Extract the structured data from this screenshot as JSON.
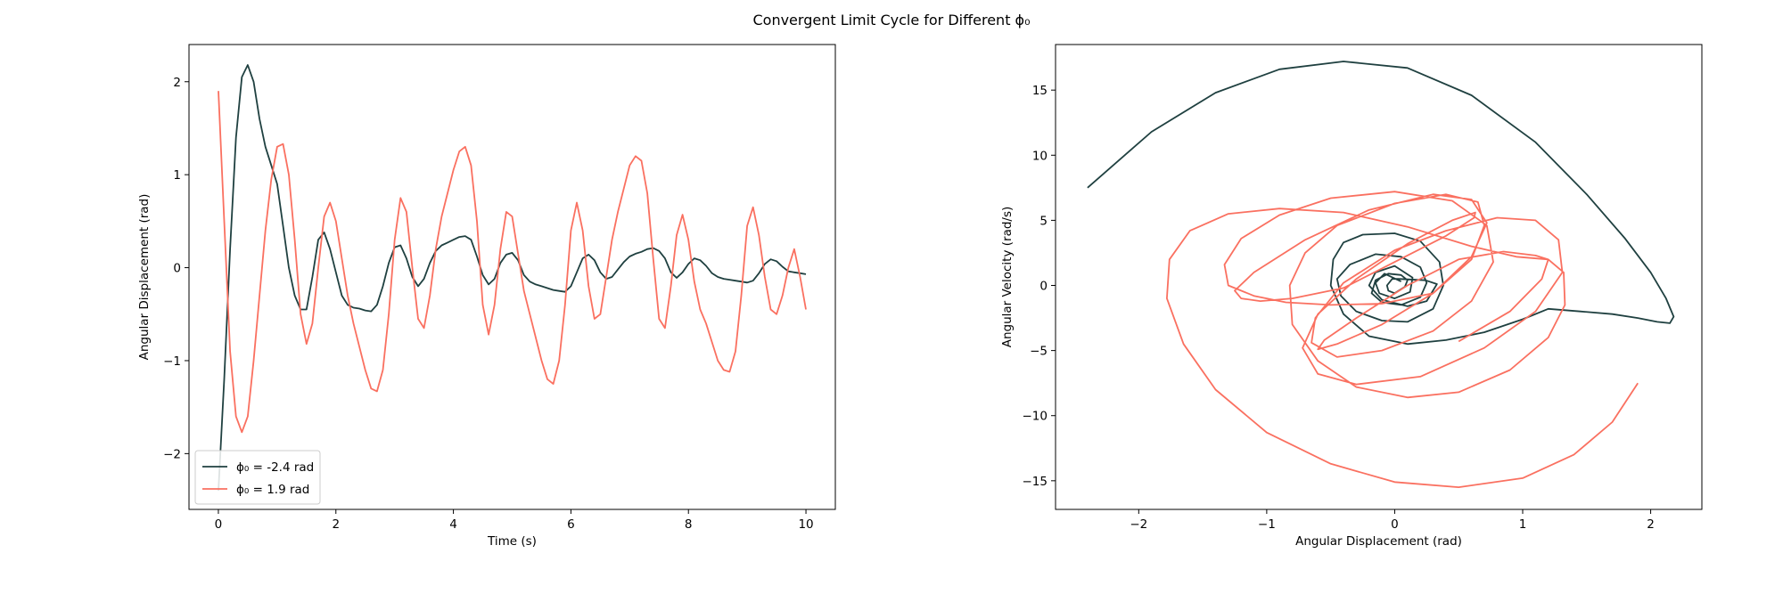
{
  "figure": {
    "title": "Convergent Limit Cycle for Different ϕ₀",
    "background": "#ffffff"
  },
  "chart_data": [
    {
      "type": "line",
      "xlabel": "Time (s)",
      "ylabel": "Angular Displacement (rad)",
      "xlim": [
        -0.5,
        10.5
      ],
      "ylim": [
        -2.6,
        2.4
      ],
      "xticks": [
        0,
        2,
        4,
        6,
        8,
        10
      ],
      "yticks": [
        -2,
        -1,
        0,
        1,
        2
      ],
      "grid": false,
      "legend": "lower-left",
      "series": [
        {
          "name": "ϕ₀ = -2.4 rad",
          "color": "#1f4040",
          "x": [
            0,
            0.1,
            0.2,
            0.3,
            0.4,
            0.5,
            0.6,
            0.7,
            0.8,
            0.9,
            1.0,
            1.1,
            1.2,
            1.3,
            1.4,
            1.5,
            1.6,
            1.7,
            1.8,
            1.9,
            2.0,
            2.1,
            2.2,
            2.3,
            2.4,
            2.5,
            2.6,
            2.7,
            2.8,
            2.9,
            3.0,
            3.1,
            3.2,
            3.3,
            3.4,
            3.5,
            3.6,
            3.7,
            3.8,
            3.9,
            4.0,
            4.1,
            4.2,
            4.3,
            4.4,
            4.5,
            4.6,
            4.7,
            4.8,
            4.9,
            5.0,
            5.1,
            5.2,
            5.3,
            5.4,
            5.5,
            5.6,
            5.7,
            5.8,
            5.9,
            6.0,
            6.1,
            6.2,
            6.3,
            6.4,
            6.5,
            6.6,
            6.7,
            6.8,
            6.9,
            7.0,
            7.1,
            7.2,
            7.3,
            7.4,
            7.5,
            7.6,
            7.7,
            7.8,
            7.9,
            8.0,
            8.1,
            8.2,
            8.3,
            8.4,
            8.5,
            8.6,
            8.7,
            8.8,
            8.9,
            9.0,
            9.1,
            9.2,
            9.3,
            9.4,
            9.5,
            9.6,
            9.7,
            9.8,
            9.9,
            10.0
          ],
          "y": [
            -2.4,
            -1.2,
            0.2,
            1.4,
            2.05,
            2.18,
            2.0,
            1.6,
            1.3,
            1.1,
            0.9,
            0.45,
            0.0,
            -0.3,
            -0.45,
            -0.45,
            -0.1,
            0.3,
            0.38,
            0.2,
            -0.05,
            -0.3,
            -0.4,
            -0.43,
            -0.44,
            -0.46,
            -0.47,
            -0.4,
            -0.2,
            0.05,
            0.22,
            0.24,
            0.1,
            -0.1,
            -0.2,
            -0.12,
            0.05,
            0.18,
            0.24,
            0.27,
            0.3,
            0.33,
            0.34,
            0.3,
            0.12,
            -0.08,
            -0.18,
            -0.12,
            0.05,
            0.14,
            0.16,
            0.08,
            -0.08,
            -0.15,
            -0.18,
            -0.2,
            -0.22,
            -0.24,
            -0.25,
            -0.26,
            -0.2,
            -0.05,
            0.1,
            0.14,
            0.08,
            -0.05,
            -0.12,
            -0.1,
            -0.02,
            0.06,
            0.12,
            0.15,
            0.17,
            0.2,
            0.21,
            0.18,
            0.1,
            -0.05,
            -0.11,
            -0.05,
            0.04,
            0.1,
            0.08,
            0.02,
            -0.06,
            -0.1,
            -0.12,
            -0.13,
            -0.14,
            -0.15,
            -0.16,
            -0.14,
            -0.06,
            0.04,
            0.09,
            0.07,
            0.01,
            -0.04,
            -0.05,
            -0.06,
            -0.07
          ]
        },
        {
          "name": "ϕ₀ =  1.9 rad",
          "color": "#fa7060",
          "x": [
            0,
            0.1,
            0.2,
            0.3,
            0.4,
            0.5,
            0.6,
            0.7,
            0.8,
            0.9,
            1.0,
            1.1,
            1.2,
            1.3,
            1.4,
            1.5,
            1.6,
            1.7,
            1.8,
            1.9,
            2.0,
            2.1,
            2.2,
            2.3,
            2.4,
            2.5,
            2.6,
            2.7,
            2.8,
            2.9,
            3.0,
            3.1,
            3.2,
            3.3,
            3.4,
            3.5,
            3.6,
            3.7,
            3.8,
            3.9,
            4.0,
            4.1,
            4.2,
            4.3,
            4.4,
            4.5,
            4.6,
            4.7,
            4.8,
            4.9,
            5.0,
            5.1,
            5.2,
            5.3,
            5.4,
            5.5,
            5.6,
            5.7,
            5.8,
            5.9,
            6.0,
            6.1,
            6.2,
            6.3,
            6.4,
            6.5,
            6.6,
            6.7,
            6.8,
            6.9,
            7.0,
            7.1,
            7.2,
            7.3,
            7.4,
            7.5,
            7.6,
            7.7,
            7.8,
            7.9,
            8.0,
            8.1,
            8.2,
            8.3,
            8.4,
            8.5,
            8.6,
            8.7,
            8.8,
            8.9,
            9.0,
            9.1,
            9.2,
            9.3,
            9.4,
            9.5,
            9.6,
            9.7,
            9.8,
            9.9,
            10.0
          ],
          "y": [
            1.9,
            0.5,
            -0.9,
            -1.6,
            -1.77,
            -1.6,
            -1.0,
            -0.3,
            0.4,
            0.95,
            1.3,
            1.33,
            1.0,
            0.3,
            -0.5,
            -0.82,
            -0.6,
            0.0,
            0.55,
            0.7,
            0.5,
            0.1,
            -0.3,
            -0.6,
            -0.85,
            -1.1,
            -1.3,
            -1.33,
            -1.1,
            -0.5,
            0.3,
            0.75,
            0.6,
            0.0,
            -0.55,
            -0.65,
            -0.3,
            0.2,
            0.55,
            0.8,
            1.05,
            1.25,
            1.3,
            1.1,
            0.5,
            -0.4,
            -0.72,
            -0.4,
            0.2,
            0.6,
            0.55,
            0.15,
            -0.25,
            -0.5,
            -0.75,
            -1.0,
            -1.2,
            -1.25,
            -1.0,
            -0.4,
            0.4,
            0.7,
            0.4,
            -0.2,
            -0.55,
            -0.5,
            -0.1,
            0.3,
            0.6,
            0.85,
            1.1,
            1.2,
            1.15,
            0.8,
            0.1,
            -0.55,
            -0.65,
            -0.2,
            0.35,
            0.57,
            0.3,
            -0.15,
            -0.45,
            -0.6,
            -0.8,
            -1.0,
            -1.1,
            -1.12,
            -0.9,
            -0.3,
            0.45,
            0.65,
            0.35,
            -0.1,
            -0.45,
            -0.5,
            -0.3,
            0.0,
            0.2,
            -0.1,
            -0.45
          ]
        }
      ]
    },
    {
      "type": "line",
      "xlabel": "Angular Displacement (rad)",
      "ylabel": "Angular Velocity (rad/s)",
      "xlim": [
        -2.65,
        2.4
      ],
      "ylim": [
        -17.2,
        18.5
      ],
      "xticks": [
        -2,
        -1,
        0,
        1,
        2
      ],
      "yticks": [
        -15,
        -10,
        -5,
        0,
        5,
        10,
        15
      ],
      "grid": false,
      "legend": "none",
      "series": [
        {
          "color": "#1f4040",
          "x": [
            -2.4,
            -1.9,
            -1.4,
            -0.9,
            -0.4,
            0.1,
            0.6,
            1.1,
            1.5,
            1.8,
            2.0,
            2.12,
            2.18,
            2.15,
            2.05,
            1.9,
            1.7,
            1.45,
            1.2,
            1.0,
            0.7,
            0.4,
            0.1,
            -0.2,
            -0.4,
            -0.5,
            -0.48,
            -0.4,
            -0.25,
            0.0,
            0.2,
            0.35,
            0.38,
            0.3,
            0.1,
            -0.1,
            -0.3,
            -0.42,
            -0.45,
            -0.35,
            -0.15,
            0.05,
            0.2,
            0.25,
            0.2,
            0.05,
            -0.1,
            -0.18,
            -0.15,
            -0.05,
            0.05,
            0.1,
            0.08,
            0.0,
            -0.05,
            -0.06,
            -0.02,
            0.03,
            0.24,
            0.33,
            0.25,
            0.1,
            -0.1,
            -0.2,
            -0.15,
            0.0,
            0.14,
            0.12,
            0.0,
            -0.12,
            -0.15,
            -0.08,
            0.05
          ],
          "y": [
            7.5,
            11.8,
            14.8,
            16.6,
            17.2,
            16.7,
            14.6,
            11.0,
            7.0,
            3.6,
            1.0,
            -1.0,
            -2.4,
            -2.9,
            -2.8,
            -2.5,
            -2.2,
            -2.0,
            -1.8,
            -2.6,
            -3.6,
            -4.2,
            -4.5,
            -3.9,
            -2.2,
            0.0,
            2.0,
            3.3,
            3.9,
            4.0,
            3.4,
            1.8,
            0.0,
            -1.8,
            -2.8,
            -2.7,
            -2.0,
            -0.8,
            0.5,
            1.6,
            2.4,
            2.2,
            1.4,
            0.2,
            -0.9,
            -1.5,
            -1.3,
            -0.6,
            0.4,
            0.9,
            0.8,
            0.4,
            -0.1,
            -0.6,
            -0.4,
            0.0,
            0.5,
            0.5,
            0.4,
            0.1,
            -1.2,
            -1.6,
            -1.1,
            0.0,
            1.0,
            1.5,
            0.6,
            -0.5,
            -1.0,
            -0.6,
            0.2,
            0.9,
            0.3
          ]
        },
        {
          "color": "#fa7060",
          "x": [
            1.9,
            1.7,
            1.4,
            1.0,
            0.5,
            0.0,
            -0.5,
            -1.0,
            -1.4,
            -1.65,
            -1.78,
            -1.76,
            -1.6,
            -1.3,
            -0.9,
            -0.4,
            0.1,
            0.6,
            0.95,
            1.2,
            1.32,
            1.33,
            1.2,
            0.9,
            0.5,
            0.1,
            -0.3,
            -0.6,
            -0.8,
            -0.82,
            -0.7,
            -0.45,
            0.0,
            0.4,
            0.65,
            0.7,
            0.6,
            0.3,
            -0.1,
            -0.5,
            -0.85,
            -1.1,
            -1.3,
            -1.33,
            -1.2,
            -0.9,
            -0.5,
            0.0,
            0.45,
            0.72,
            0.77,
            0.6,
            0.3,
            -0.1,
            -0.45,
            -0.65,
            -0.62,
            -0.4,
            0.0,
            0.4,
            0.8,
            1.1,
            1.28,
            1.31,
            1.1,
            0.7,
            0.2,
            -0.3,
            -0.6,
            -0.72,
            -0.6,
            -0.3,
            0.1,
            0.45,
            0.63,
            0.62,
            0.4,
            0.0,
            -0.4,
            -0.8,
            -1.05,
            -1.2,
            -1.25,
            -1.1,
            -0.7,
            -0.2,
            0.3,
            0.6,
            0.72,
            0.6,
            0.3,
            -0.1,
            -0.45,
            -0.6,
            -0.55,
            -0.3,
            0.1,
            0.5,
            0.85,
            1.1,
            1.2,
            1.15,
            0.9,
            0.5
          ],
          "y": [
            -7.5,
            -10.5,
            -13.0,
            -14.8,
            -15.5,
            -15.1,
            -13.7,
            -11.3,
            -8.0,
            -4.5,
            -1.0,
            2.0,
            4.2,
            5.5,
            5.9,
            5.6,
            4.5,
            3.0,
            2.2,
            2.0,
            1.0,
            -1.5,
            -4.0,
            -6.5,
            -8.2,
            -8.6,
            -7.8,
            -5.8,
            -3.0,
            0.0,
            2.5,
            4.6,
            6.3,
            7.0,
            6.4,
            4.6,
            2.0,
            -0.6,
            -1.4,
            -1.5,
            -1.3,
            -0.8,
            0.0,
            1.6,
            3.6,
            5.4,
            6.7,
            7.2,
            6.5,
            4.6,
            1.8,
            -1.2,
            -3.5,
            -5.0,
            -5.5,
            -4.4,
            -2.5,
            0.2,
            2.7,
            4.2,
            5.2,
            5.0,
            3.5,
            1.0,
            -2.0,
            -4.8,
            -7.0,
            -7.6,
            -6.8,
            -4.8,
            -2.2,
            0.5,
            3.2,
            5.0,
            5.6,
            5.2,
            3.8,
            1.8,
            -0.2,
            -1.0,
            -1.2,
            -1.0,
            -0.4,
            1.0,
            3.5,
            5.8,
            7.0,
            6.6,
            4.8,
            2.2,
            -0.6,
            -3.0,
            -4.5,
            -4.9,
            -4.2,
            -2.5,
            0.0,
            2.0,
            2.6,
            2.3,
            2.0,
            0.5,
            -2.0,
            -4.3
          ]
        }
      ]
    }
  ]
}
